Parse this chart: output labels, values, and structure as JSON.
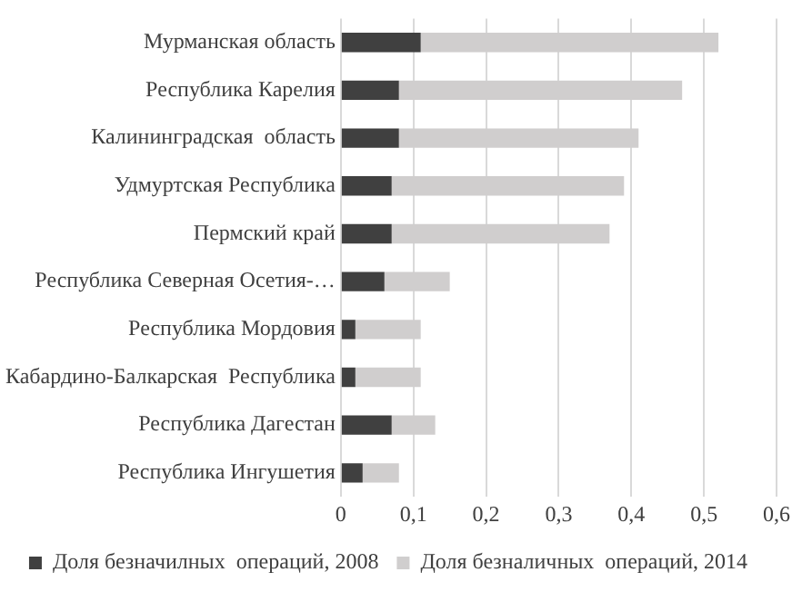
{
  "chart_data": {
    "type": "bar",
    "orientation": "horizontal",
    "stacked": true,
    "categories": [
      "Мурманская область",
      "Республика Карелия",
      "Калининградская  область",
      "Удмуртская Республика",
      "Пермский край",
      "Республика Северная Осетия-…",
      "Республика Мордовия",
      "Кабардино-Балкарская  Республика",
      "Республика Дагестан",
      "Республика Ингушетия"
    ],
    "series": [
      {
        "name": "Доля безначилных  операций, 2008",
        "color": "#404040",
        "values": [
          0.11,
          0.08,
          0.08,
          0.07,
          0.07,
          0.06,
          0.02,
          0.02,
          0.07,
          0.03
        ]
      },
      {
        "name": "Доля безналичных  операций, 2014",
        "color": "#d0cece",
        "values": [
          0.41,
          0.39,
          0.33,
          0.32,
          0.3,
          0.09,
          0.09,
          0.09,
          0.06,
          0.05
        ]
      }
    ],
    "xlim": [
      0,
      0.6
    ],
    "xticks": [
      {
        "value": 0,
        "label": "0"
      },
      {
        "value": 0.1,
        "label": "0,1"
      },
      {
        "value": 0.2,
        "label": "0,2"
      },
      {
        "value": 0.3,
        "label": "0,3"
      },
      {
        "value": 0.4,
        "label": "0,4"
      },
      {
        "value": 0.5,
        "label": "0,5"
      },
      {
        "value": 0.6,
        "label": "0,6"
      }
    ],
    "grid": "x",
    "legend": "bottom"
  }
}
